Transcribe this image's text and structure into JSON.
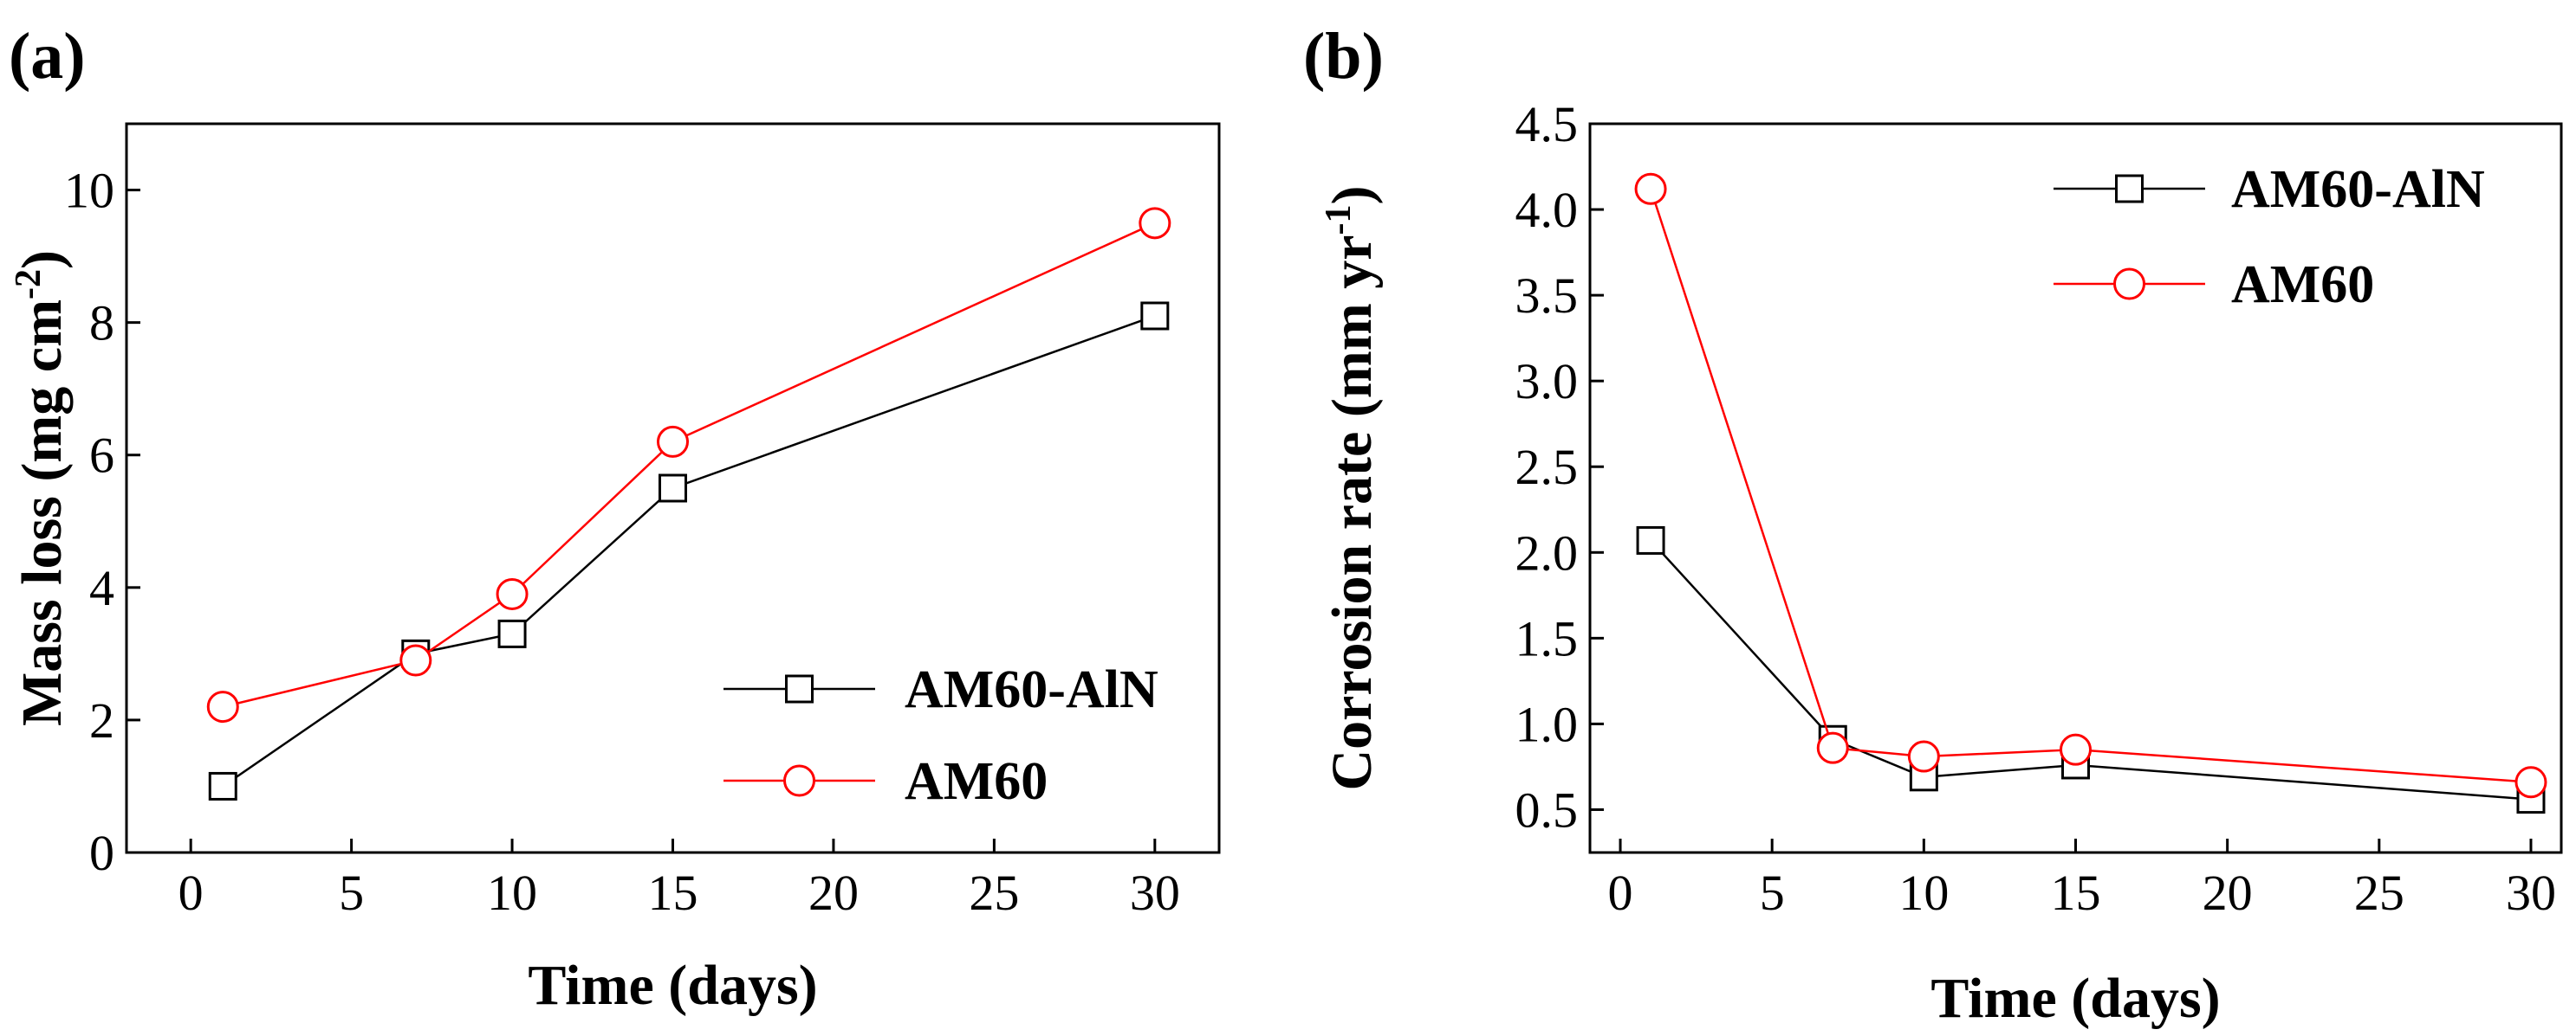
{
  "chart_data": [
    {
      "type": "line",
      "panel_label": "(a)",
      "xlabel": "Time (days)",
      "ylabel": "Mass loss (mg cm",
      "ylabel_sup": "-2",
      "ylabel_end": ")",
      "xlim": [
        -2,
        32
      ],
      "ylim": [
        0,
        11
      ],
      "xticks": [
        0,
        5,
        10,
        15,
        20,
        25,
        30
      ],
      "yticks": [
        0,
        2,
        4,
        6,
        8,
        10
      ],
      "xtick_labels": [
        "0",
        "5",
        "10",
        "15",
        "20",
        "25",
        "30"
      ],
      "ytick_labels": [
        "0",
        "2",
        "4",
        "6",
        "8",
        "10"
      ],
      "legend_position": "bottom-right",
      "series": [
        {
          "name": "AM60-AlN",
          "marker": "square",
          "color": "#000000",
          "x": [
            1,
            7,
            10,
            15,
            30
          ],
          "y": [
            1.0,
            3.0,
            3.3,
            5.5,
            8.1
          ]
        },
        {
          "name": "AM60",
          "marker": "circle",
          "color": "#ff0000",
          "x": [
            1,
            7,
            10,
            15,
            30
          ],
          "y": [
            2.2,
            2.9,
            3.9,
            6.2,
            9.5
          ]
        }
      ]
    },
    {
      "type": "line",
      "panel_label": "(b)",
      "xlabel": "Time (days)",
      "ylabel": "Corrosion rate (mm yr",
      "ylabel_sup": "-1",
      "ylabel_end": ")",
      "xlim": [
        -1,
        31
      ],
      "ylim": [
        0.25,
        4.5
      ],
      "xticks": [
        0,
        5,
        10,
        15,
        20,
        25,
        30
      ],
      "yticks": [
        0.5,
        1.0,
        1.5,
        2.0,
        2.5,
        3.0,
        3.5,
        4.0,
        4.5
      ],
      "xtick_labels": [
        "0",
        "5",
        "10",
        "15",
        "20",
        "25",
        "30"
      ],
      "ytick_labels": [
        "0.5",
        "1.0",
        "1.5",
        "2.0",
        "2.5",
        "3.0",
        "3.5",
        "4.0",
        "4.5"
      ],
      "legend_position": "top-right",
      "series": [
        {
          "name": "AM60-AlN",
          "marker": "square",
          "color": "#000000",
          "x": [
            1,
            7,
            10,
            15,
            30
          ],
          "y": [
            2.07,
            0.91,
            0.69,
            0.76,
            0.56
          ]
        },
        {
          "name": "AM60",
          "marker": "circle",
          "color": "#ff0000",
          "x": [
            1,
            7,
            10,
            15,
            30
          ],
          "y": [
            4.12,
            0.86,
            0.81,
            0.85,
            0.66
          ]
        }
      ]
    }
  ]
}
